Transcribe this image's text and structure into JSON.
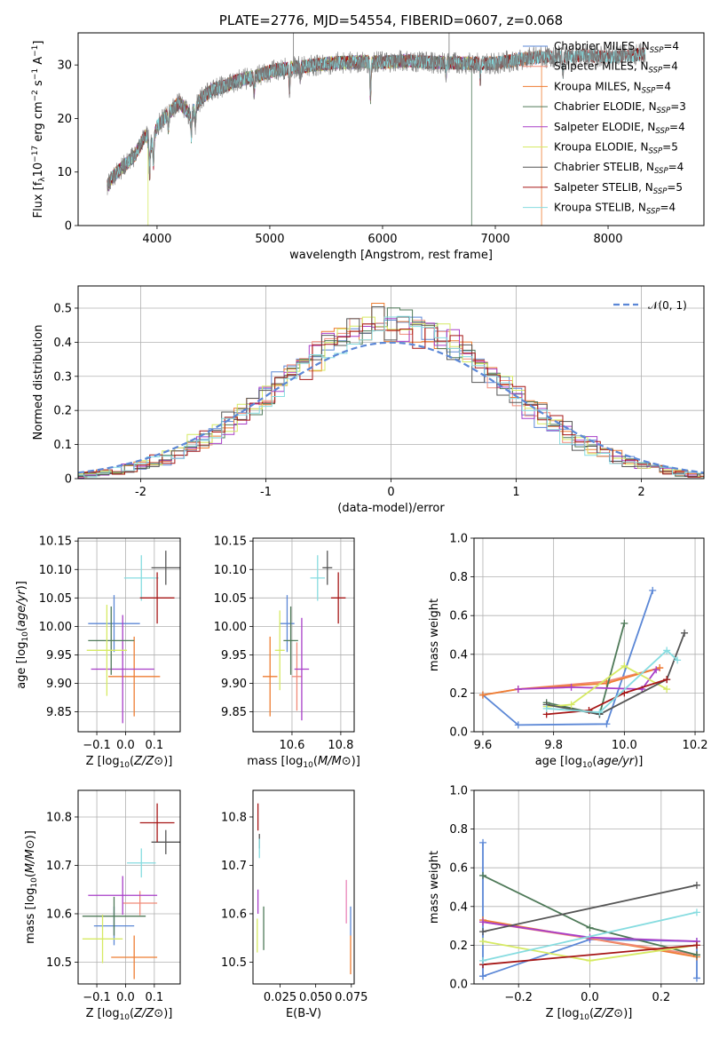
{
  "colors": {
    "Chabrier MILES": "#5b87d6",
    "Salpeter MILES": "#f08a78",
    "Kroupa MILES": "#ee7d32",
    "Chabrier ELODIE": "#4f7a59",
    "Salpeter ELODIE": "#a83ec8",
    "Kroupa ELODIE": "#d6ea63",
    "Chabrier STELIB": "#555555",
    "Salpeter STELIB": "#a61616",
    "Kroupa STELIB": "#86dce0",
    "pink": "#e985b9",
    "gaussian": "#5b87d6"
  },
  "chart_data": [
    {
      "id": "spectrum",
      "type": "line",
      "title": "PLATE=2776, MJD=54554, FIBERID=0607, z=0.068",
      "xlabel": "wavelength [Angstrom, rest frame]",
      "ylabel": "Flux [fλ10⁻¹⁷ erg cm⁻² s⁻¹ A⁻¹]",
      "xlim": [
        3300,
        8850
      ],
      "ylim": [
        0,
        36
      ],
      "xticks": [
        4000,
        5000,
        6000,
        7000,
        8000
      ],
      "yticks": [
        0,
        10,
        20,
        30
      ],
      "grid": false,
      "legend_position": "upper-right",
      "legend": [
        {
          "label": "Chabrier MILES, N",
          "sub": "SSP",
          "suffix": "=4",
          "key": "Chabrier MILES"
        },
        {
          "label": "Salpeter MILES, N",
          "sub": "SSP",
          "suffix": "=4",
          "key": "Salpeter MILES"
        },
        {
          "label": "Kroupa MILES, N",
          "sub": "SSP",
          "suffix": "=4",
          "key": "Kroupa MILES"
        },
        {
          "label": "Chabrier ELODIE, N",
          "sub": "SSP",
          "suffix": "=3",
          "key": "Chabrier ELODIE"
        },
        {
          "label": "Salpeter ELODIE, N",
          "sub": "SSP",
          "suffix": "=4",
          "key": "Salpeter ELODIE"
        },
        {
          "label": "Kroupa ELODIE, N",
          "sub": "SSP",
          "suffix": "=5",
          "key": "Kroupa ELODIE"
        },
        {
          "label": "Chabrier STELIB, N",
          "sub": "SSP",
          "suffix": "=4",
          "key": "Chabrier STELIB"
        },
        {
          "label": "Salpeter STELIB, N",
          "sub": "SSP",
          "suffix": "=5",
          "key": "Salpeter STELIB"
        },
        {
          "label": "Kroupa STELIB, N",
          "sub": "SSP",
          "suffix": "=4",
          "key": "Kroupa STELIB"
        }
      ],
      "continuum": [
        [
          3560,
          7.5
        ],
        [
          3620,
          9.5
        ],
        [
          3700,
          11
        ],
        [
          3800,
          13
        ],
        [
          3900,
          17
        ],
        [
          3950,
          15
        ],
        [
          4000,
          18.5
        ],
        [
          4100,
          21
        ],
        [
          4200,
          23
        ],
        [
          4300,
          20.5
        ],
        [
          4400,
          24
        ],
        [
          4500,
          25.5
        ],
        [
          4600,
          26
        ],
        [
          4700,
          27
        ],
        [
          4800,
          27.5
        ],
        [
          4900,
          28
        ],
        [
          5000,
          28.8
        ],
        [
          5200,
          29.5
        ],
        [
          5400,
          30
        ],
        [
          5600,
          30.4
        ],
        [
          5800,
          30.6
        ],
        [
          6000,
          30.5
        ],
        [
          6200,
          30.8
        ],
        [
          6400,
          30.5
        ],
        [
          6600,
          30.4
        ],
        [
          6800,
          30.3
        ],
        [
          7000,
          30.3
        ],
        [
          7200,
          31
        ],
        [
          7400,
          31.5
        ],
        [
          7600,
          31.5
        ],
        [
          7800,
          31.8
        ],
        [
          8000,
          31.5
        ],
        [
          8300,
          32
        ]
      ],
      "absorption_lines": [
        [
          3934,
          6
        ],
        [
          3968,
          5
        ],
        [
          4101,
          3
        ],
        [
          4304,
          4
        ],
        [
          4340,
          3
        ],
        [
          4861,
          3
        ],
        [
          5175,
          4
        ],
        [
          5270,
          2
        ],
        [
          5893,
          7
        ],
        [
          6563,
          2
        ],
        [
          6867,
          3
        ],
        [
          7600,
          3
        ]
      ],
      "dropouts": [
        {
          "key": "Kroupa ELODIE",
          "x": 3920
        },
        {
          "key": "Chabrier ELODIE",
          "x": 6790
        },
        {
          "key": "Kroupa MILES",
          "x": 7410
        }
      ],
      "spikes": [
        {
          "x": 5210,
          "y": 36
        },
        {
          "x": 6590,
          "y": 36
        }
      ],
      "model_end": {
        "MILES": 7400,
        "ELODIE": 6790,
        "STELIB": 8330
      }
    },
    {
      "id": "residuals",
      "type": "histogram",
      "xlabel": "(data-model)/error",
      "ylabel": "Normed distribution",
      "xlim": [
        -2.5,
        2.5
      ],
      "ylim": [
        0,
        0.565
      ],
      "xticks": [
        -2,
        -1,
        0,
        1,
        2
      ],
      "yticks": [
        0.0,
        0.1,
        0.2,
        0.3,
        0.4,
        0.5
      ],
      "grid": true,
      "bin_width": 0.1,
      "gaussian_label": "𝒩(0, 1)",
      "legend_position": "upper-right",
      "series": [
        {
          "key": "Chabrier MILES",
          "seed": 1
        },
        {
          "key": "Salpeter MILES",
          "seed": 2
        },
        {
          "key": "Kroupa MILES",
          "seed": 3
        },
        {
          "key": "Chabrier ELODIE",
          "seed": 4
        },
        {
          "key": "Salpeter ELODIE",
          "seed": 5
        },
        {
          "key": "Kroupa ELODIE",
          "seed": 6
        },
        {
          "key": "Chabrier STELIB",
          "seed": 7
        },
        {
          "key": "Salpeter STELIB",
          "seed": 8
        },
        {
          "key": "Kroupa STELIB",
          "seed": 9
        }
      ]
    },
    {
      "id": "age_vs_Z",
      "type": "errorbar",
      "xlabel": "Z [log10(Z/Z⊙)]",
      "ylabel": "age  [log10(age/yr)]",
      "xlim": [
        -0.165,
        0.19
      ],
      "ylim": [
        9.815,
        10.155
      ],
      "xticks": [
        -0.1,
        0.0,
        0.1
      ],
      "xticklabels": [
        "−0.1",
        "0.0",
        "0.1"
      ],
      "yticks": [
        9.85,
        9.9,
        9.95,
        10.0,
        10.05,
        10.1,
        10.15
      ],
      "yticklabels": [
        "9.85",
        "9.90",
        "9.95",
        "10.00",
        "10.05",
        "10.10",
        "10.15"
      ],
      "grid": true,
      "points": [
        {
          "key": "Chabrier MILES",
          "x": -0.04,
          "y": 10.005,
          "xerr": 0.09,
          "yerr": 0.05
        },
        {
          "key": "Kroupa MILES",
          "x": 0.03,
          "y": 9.912,
          "xerr": 0.09,
          "yerr": 0.07
        },
        {
          "key": "Salpeter ELODIE",
          "x": -0.01,
          "y": 9.925,
          "xerr": 0.11,
          "yerr": 0.095
        },
        {
          "key": "Chabrier ELODIE",
          "x": -0.05,
          "y": 9.975,
          "xerr": 0.08,
          "yerr": 0.06
        },
        {
          "key": "Kroupa ELODIE",
          "x": -0.065,
          "y": 9.958,
          "xerr": 0.07,
          "yerr": 0.08
        },
        {
          "key": "Kroupa STELIB",
          "x": 0.055,
          "y": 10.085,
          "xerr": 0.06,
          "yerr": 0.04
        },
        {
          "key": "Chabrier STELIB",
          "x": 0.14,
          "y": 10.103,
          "xerr": 0.05,
          "yerr": 0.03
        },
        {
          "key": "Salpeter STELIB",
          "x": 0.11,
          "y": 10.05,
          "xerr": 0.06,
          "yerr": 0.045
        }
      ]
    },
    {
      "id": "age_vs_mass",
      "type": "errorbar",
      "xlabel": "mass [log10(M/M⊙)]",
      "ylabel": "",
      "xlim": [
        10.44,
        10.855
      ],
      "ylim": [
        9.815,
        10.155
      ],
      "xticks": [
        10.6,
        10.8
      ],
      "xticklabels": [
        "10.6",
        "10.8"
      ],
      "yticks": [
        9.85,
        9.9,
        9.95,
        10.0,
        10.05,
        10.1,
        10.15
      ],
      "yticklabels": [
        "9.85",
        "9.90",
        "9.95",
        "10.00",
        "10.05",
        "10.10",
        "10.15"
      ],
      "grid": true,
      "points": [
        {
          "key": "Chabrier MILES",
          "x": 10.58,
          "y": 10.005,
          "xerr": 0.03,
          "yerr": 0.05
        },
        {
          "key": "Kroupa MILES",
          "x": 10.51,
          "y": 9.912,
          "xerr": 0.03,
          "yerr": 0.07
        },
        {
          "key": "Salpeter MILES",
          "x": 10.62,
          "y": 9.912,
          "xerr": 0.02,
          "yerr": 0.06
        },
        {
          "key": "Salpeter ELODIE",
          "x": 10.64,
          "y": 9.925,
          "xerr": 0.03,
          "yerr": 0.09
        },
        {
          "key": "Chabrier ELODIE",
          "x": 10.595,
          "y": 9.975,
          "xerr": 0.03,
          "yerr": 0.06
        },
        {
          "key": "Kroupa ELODIE",
          "x": 10.55,
          "y": 9.958,
          "xerr": 0.02,
          "yerr": 0.07
        },
        {
          "key": "Kroupa STELIB",
          "x": 10.705,
          "y": 10.085,
          "xerr": 0.03,
          "yerr": 0.04
        },
        {
          "key": "Chabrier STELIB",
          "x": 10.745,
          "y": 10.103,
          "xerr": 0.02,
          "yerr": 0.03
        },
        {
          "key": "Salpeter STELIB",
          "x": 10.79,
          "y": 10.05,
          "xerr": 0.03,
          "yerr": 0.045
        }
      ]
    },
    {
      "id": "weight_vs_age",
      "type": "line",
      "xlabel": "age  [log10(age/yr)]",
      "ylabel": "mass weight",
      "xlim": [
        9.575,
        10.225
      ],
      "ylim": [
        0,
        1
      ],
      "xticks": [
        9.6,
        9.8,
        10.0,
        10.2
      ],
      "xticklabels": [
        "9.6",
        "9.8",
        "10.0",
        "10.2"
      ],
      "yticks": [
        0,
        0.2,
        0.4,
        0.6,
        0.8,
        1.0
      ],
      "yticklabels": [
        "0.0",
        "0.2",
        "0.4",
        "0.6",
        "0.8",
        "1.0"
      ],
      "grid": true,
      "series": [
        {
          "key": "Chabrier MILES",
          "x": [
            9.6,
            9.7,
            9.95,
            10.08
          ],
          "y": [
            0.19,
            0.035,
            0.04,
            0.73
          ]
        },
        {
          "key": "Salpeter MILES",
          "x": [
            9.6,
            9.7,
            9.95,
            10.1
          ],
          "y": [
            0.19,
            0.22,
            0.26,
            0.33
          ]
        },
        {
          "key": "Kroupa MILES",
          "x": [
            9.6,
            9.7,
            9.95,
            10.1
          ],
          "y": [
            0.19,
            0.22,
            0.25,
            0.33
          ]
        },
        {
          "key": "Chabrier ELODIE",
          "x": [
            9.78,
            9.93,
            10.0
          ],
          "y": [
            0.15,
            0.09,
            0.56
          ]
        },
        {
          "key": "Salpeter ELODIE",
          "x": [
            9.7,
            9.85,
            10.05,
            10.09
          ],
          "y": [
            0.22,
            0.23,
            0.22,
            0.32
          ]
        },
        {
          "key": "Kroupa ELODIE",
          "x": [
            9.78,
            9.85,
            10.0,
            10.12
          ],
          "y": [
            0.13,
            0.14,
            0.34,
            0.22
          ]
        },
        {
          "key": "Chabrier STELIB",
          "x": [
            9.78,
            9.93,
            10.12,
            10.17
          ],
          "y": [
            0.14,
            0.09,
            0.27,
            0.51
          ]
        },
        {
          "key": "Salpeter STELIB",
          "x": [
            9.78,
            9.9,
            10.0,
            10.12
          ],
          "y": [
            0.09,
            0.11,
            0.2,
            0.27
          ]
        },
        {
          "key": "Kroupa STELIB",
          "x": [
            9.78,
            9.93,
            10.12,
            10.15
          ],
          "y": [
            0.12,
            0.1,
            0.42,
            0.37
          ]
        }
      ]
    },
    {
      "id": "mass_vs_Z",
      "type": "errorbar",
      "xlabel": "Z [log10(Z/Z⊙)]",
      "ylabel": "mass [log10(M/M⊙)]",
      "xlim": [
        -0.165,
        0.19
      ],
      "ylim": [
        10.455,
        10.855
      ],
      "xticks": [
        -0.1,
        0.0,
        0.1
      ],
      "xticklabels": [
        "−0.1",
        "0.0",
        "0.1"
      ],
      "yticks": [
        10.5,
        10.6,
        10.7,
        10.8
      ],
      "yticklabels": [
        "10.5",
        "10.6",
        "10.7",
        "10.8"
      ],
      "grid": true,
      "points": [
        {
          "key": "Chabrier MILES",
          "x": -0.04,
          "y": 10.575,
          "xerr": 0.07,
          "yerr": 0.04
        },
        {
          "key": "Kroupa MILES",
          "x": 0.03,
          "y": 10.51,
          "xerr": 0.08,
          "yerr": 0.045
        },
        {
          "key": "Salpeter MILES",
          "x": 0.05,
          "y": 10.622,
          "xerr": 0.06,
          "yerr": 0.025
        },
        {
          "key": "Salpeter ELODIE",
          "x": -0.01,
          "y": 10.638,
          "xerr": 0.12,
          "yerr": 0.04
        },
        {
          "key": "Chabrier ELODIE",
          "x": -0.04,
          "y": 10.595,
          "xerr": 0.11,
          "yerr": 0.04
        },
        {
          "key": "Kroupa ELODIE",
          "x": -0.08,
          "y": 10.548,
          "xerr": 0.07,
          "yerr": 0.05
        },
        {
          "key": "Kroupa STELIB",
          "x": 0.055,
          "y": 10.705,
          "xerr": 0.05,
          "yerr": 0.03
        },
        {
          "key": "Chabrier STELIB",
          "x": 0.14,
          "y": 10.748,
          "xerr": 0.05,
          "yerr": 0.025
        },
        {
          "key": "Salpeter STELIB",
          "x": 0.11,
          "y": 10.788,
          "xerr": 0.06,
          "yerr": 0.04
        }
      ]
    },
    {
      "id": "mass_vs_ebv",
      "type": "errorbar",
      "xlabel": "E(B-V)",
      "ylabel": "",
      "xlim": [
        0.006,
        0.077
      ],
      "ylim": [
        10.455,
        10.855
      ],
      "xticks": [
        0.025,
        0.05,
        0.075
      ],
      "xticklabels": [
        "0.025",
        "0.050",
        "0.075"
      ],
      "yticks": [
        10.5,
        10.6,
        10.7,
        10.8
      ],
      "yticklabels": [
        "10.5",
        "10.6",
        "10.7",
        "10.8"
      ],
      "grid": false,
      "points": [
        {
          "key": "Salpeter STELIB",
          "x": 0.0095,
          "y": 10.8,
          "xerr": 0,
          "yerr": 0.028
        },
        {
          "key": "Chabrier STELIB",
          "x": 0.0105,
          "y": 10.75,
          "xerr": 0,
          "yerr": 0.015
        },
        {
          "key": "Kroupa STELIB",
          "x": 0.0105,
          "y": 10.735,
          "xerr": 0,
          "yerr": 0.02
        },
        {
          "key": "Salpeter ELODIE",
          "x": 0.0095,
          "y": 10.625,
          "xerr": 0,
          "yerr": 0.025
        },
        {
          "key": "Chabrier ELODIE",
          "x": 0.0135,
          "y": 10.57,
          "xerr": 0,
          "yerr": 0.045
        },
        {
          "key": "Kroupa ELODIE",
          "x": 0.009,
          "y": 10.555,
          "xerr": 0,
          "yerr": 0.035
        },
        {
          "key": "pink",
          "x": 0.0715,
          "y": 10.625,
          "xerr": 0,
          "yerr": 0.045
        },
        {
          "key": "Chabrier MILES",
          "x": 0.0745,
          "y": 10.585,
          "xerr": 0,
          "yerr": 0.03
        },
        {
          "key": "Kroupa MILES",
          "x": 0.0745,
          "y": 10.515,
          "xerr": 0,
          "yerr": 0.04
        }
      ]
    },
    {
      "id": "weight_vs_Z",
      "type": "line",
      "xlabel": "Z [log10(Z/Z⊙)]",
      "ylabel": "mass weight",
      "xlim": [
        -0.325,
        0.32
      ],
      "ylim": [
        0,
        1
      ],
      "xticks": [
        -0.2,
        0.0,
        0.2
      ],
      "xticklabels": [
        "−0.2",
        "0.0",
        "0.2"
      ],
      "yticks": [
        0,
        0.2,
        0.4,
        0.6,
        0.8,
        1.0
      ],
      "yticklabels": [
        "0.0",
        "0.2",
        "0.4",
        "0.6",
        "0.8",
        "1.0"
      ],
      "grid": true,
      "series": [
        {
          "key": "Chabrier MILES",
          "x": [
            -0.3,
            -0.3,
            -0.3,
            0.0,
            0.3,
            0.3
          ],
          "y": [
            0.04,
            0.73,
            0.04,
            0.23,
            0.22,
            0.03
          ]
        },
        {
          "key": "Kroupa MILES",
          "x": [
            -0.3,
            0.3
          ],
          "y": [
            0.33,
            0.14
          ]
        },
        {
          "key": "Salpeter MILES",
          "x": [
            -0.3,
            0.3
          ],
          "y": [
            0.32,
            0.15
          ]
        },
        {
          "key": "Chabrier ELODIE",
          "x": [
            -0.3,
            0.0,
            0.3
          ],
          "y": [
            0.56,
            0.29,
            0.15
          ]
        },
        {
          "key": "Salpeter ELODIE",
          "x": [
            -0.3,
            0.0,
            0.3
          ],
          "y": [
            0.32,
            0.24,
            0.22
          ]
        },
        {
          "key": "Kroupa ELODIE",
          "x": [
            -0.3,
            0.0,
            0.3
          ],
          "y": [
            0.22,
            0.12,
            0.2
          ]
        },
        {
          "key": "Chabrier STELIB",
          "x": [
            -0.3,
            0.3
          ],
          "y": [
            0.27,
            0.51
          ]
        },
        {
          "key": "Salpeter STELIB",
          "x": [
            -0.3,
            0.3
          ],
          "y": [
            0.1,
            0.2
          ]
        },
        {
          "key": "Kroupa STELIB",
          "x": [
            -0.3,
            0.3
          ],
          "y": [
            0.12,
            0.37
          ]
        }
      ]
    }
  ]
}
